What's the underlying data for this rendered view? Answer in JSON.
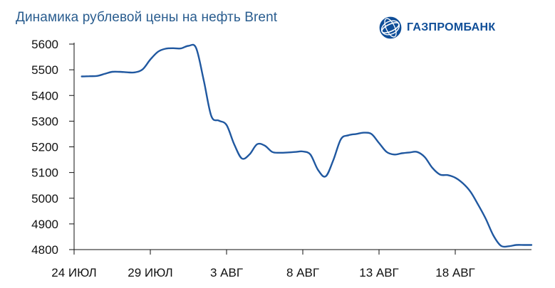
{
  "title": "Динамика рублевой цены на нефть Brent",
  "brand": {
    "name": "ГАЗПРОМБАНК",
    "logo_icon": "gazprombank-globe-logo",
    "color": "#0f4e98"
  },
  "chart_data": {
    "type": "line",
    "title": "Динамика рублевой цены на нефть Brent",
    "xlabel": "",
    "ylabel": "",
    "ylim": [
      4800,
      5600
    ],
    "yticks": [
      4800,
      4900,
      5000,
      5100,
      5200,
      5300,
      5400,
      5500,
      5600
    ],
    "xlim": [
      0,
      30
    ],
    "xticks": [
      {
        "x": 0,
        "label": "24 ИЮЛ"
      },
      {
        "x": 5,
        "label": "29 ИЮЛ"
      },
      {
        "x": 10,
        "label": "3 АВГ"
      },
      {
        "x": 15,
        "label": "8 АВГ"
      },
      {
        "x": 20,
        "label": "13 АВГ"
      },
      {
        "x": 25,
        "label": "18 АВГ"
      }
    ],
    "grid": false,
    "line_color": "#2058a0",
    "series": [
      {
        "name": "",
        "points": [
          [
            0.5,
            5474
          ],
          [
            1.0,
            5475
          ],
          [
            1.5,
            5476
          ],
          [
            2.0,
            5484
          ],
          [
            2.5,
            5492
          ],
          [
            3.0,
            5492
          ],
          [
            3.5,
            5490
          ],
          [
            4.0,
            5490
          ],
          [
            4.5,
            5502
          ],
          [
            5.0,
            5540
          ],
          [
            5.5,
            5570
          ],
          [
            6.0,
            5582
          ],
          [
            6.5,
            5584
          ],
          [
            7.0,
            5583
          ],
          [
            7.5,
            5593
          ],
          [
            8.0,
            5585
          ],
          [
            8.5,
            5460
          ],
          [
            9.0,
            5320
          ],
          [
            9.5,
            5302
          ],
          [
            10.0,
            5285
          ],
          [
            10.5,
            5210
          ],
          [
            11.0,
            5155
          ],
          [
            11.5,
            5170
          ],
          [
            12.0,
            5210
          ],
          [
            12.5,
            5205
          ],
          [
            13.0,
            5180
          ],
          [
            13.5,
            5177
          ],
          [
            14.0,
            5178
          ],
          [
            14.5,
            5180
          ],
          [
            15.0,
            5182
          ],
          [
            15.5,
            5170
          ],
          [
            16.0,
            5110
          ],
          [
            16.5,
            5085
          ],
          [
            17.0,
            5148
          ],
          [
            17.5,
            5230
          ],
          [
            18.0,
            5245
          ],
          [
            18.5,
            5250
          ],
          [
            19.0,
            5255
          ],
          [
            19.5,
            5250
          ],
          [
            20.0,
            5215
          ],
          [
            20.5,
            5180
          ],
          [
            21.0,
            5170
          ],
          [
            21.5,
            5175
          ],
          [
            22.0,
            5178
          ],
          [
            22.5,
            5180
          ],
          [
            23.0,
            5160
          ],
          [
            23.5,
            5118
          ],
          [
            24.0,
            5092
          ],
          [
            24.5,
            5090
          ],
          [
            25.0,
            5080
          ],
          [
            25.5,
            5058
          ],
          [
            26.0,
            5025
          ],
          [
            26.5,
            4975
          ],
          [
            27.0,
            4920
          ],
          [
            27.5,
            4855
          ],
          [
            28.0,
            4815
          ],
          [
            28.5,
            4813
          ],
          [
            29.0,
            4818
          ],
          [
            29.5,
            4818
          ],
          [
            30.0,
            4818
          ]
        ]
      }
    ]
  }
}
